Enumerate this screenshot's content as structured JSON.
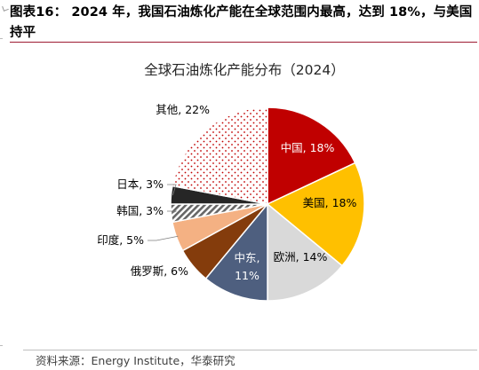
{
  "figure": {
    "heading": "图表16： 2024 年，我国石油炼化产能在全球范围内最高，达到 18%，与美国持平",
    "source": "资料来源：Energy Institute，华泰研究"
  },
  "chart_data": {
    "type": "pie",
    "title": "全球石油炼化产能分布（2024）",
    "unit": "%",
    "slices": [
      {
        "name": "中国",
        "value": 18,
        "label": "中国, 18%",
        "color": "#c00000"
      },
      {
        "name": "美国",
        "value": 18,
        "label": "美国, 18%",
        "color": "#ffc000"
      },
      {
        "name": "欧洲",
        "value": 14,
        "label": "欧洲, 14%",
        "color": "#d9d9d9"
      },
      {
        "name": "中东",
        "value": 11,
        "label": "中东, 11%",
        "color": "#4e5f7f"
      },
      {
        "name": "俄罗斯",
        "value": 6,
        "label": "俄罗斯, 6%",
        "color": "#843c0c"
      },
      {
        "name": "印度",
        "value": 5,
        "label": "印度, 5%",
        "color": "#f4b183"
      },
      {
        "name": "韩国",
        "value": 3,
        "label": "韩国, 3%",
        "color": "#7f7f7f",
        "pattern": "diagonal-stripes"
      },
      {
        "name": "日本",
        "value": 3,
        "label": "日本, 3%",
        "color": "#262626"
      },
      {
        "name": "其他",
        "value": 22,
        "label": "其他, 22%",
        "color": "#c00000",
        "pattern": "dots"
      }
    ]
  }
}
